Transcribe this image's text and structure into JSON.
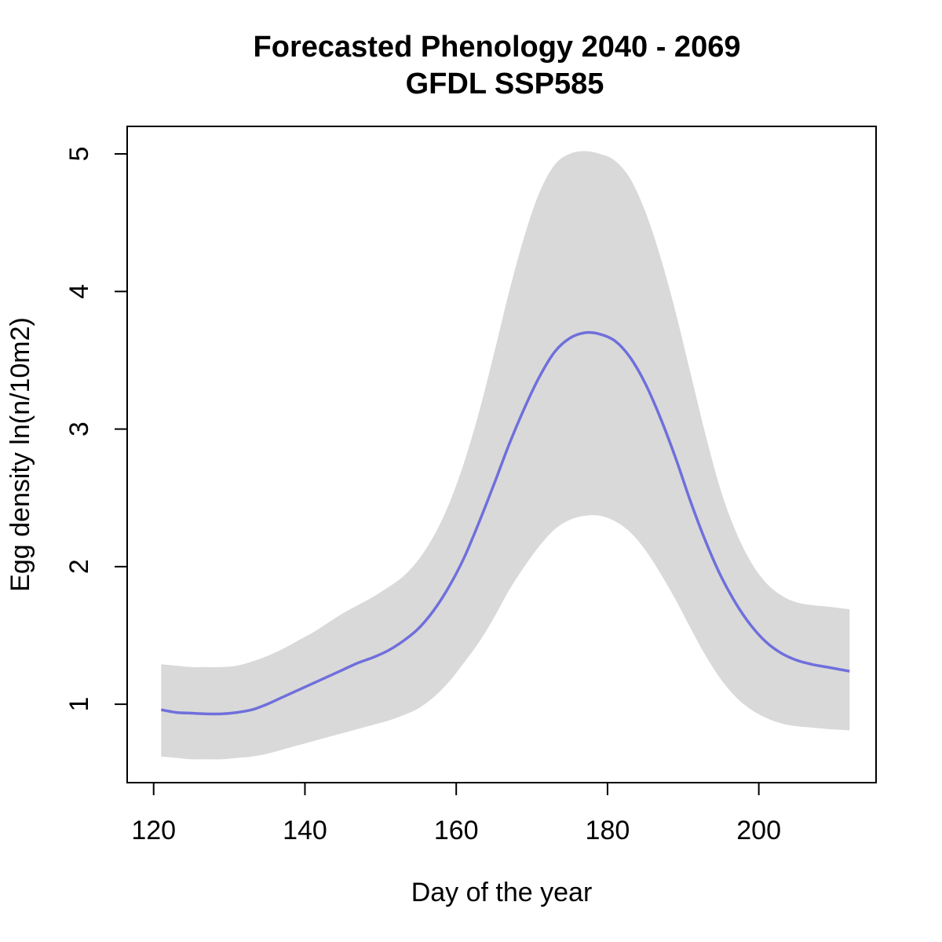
{
  "chart_data": {
    "type": "line",
    "title": "Forecasted Phenology 2040 - 2069",
    "subtitle": "GFDL SSP585",
    "xlabel": "Day of the year",
    "ylabel": "Egg density ln(n/10m2)",
    "xlim": [
      116.5,
      215.5
    ],
    "ylim": [
      0.43,
      5.2
    ],
    "x_ticks": [
      120,
      140,
      160,
      180,
      200
    ],
    "x_tick_labels": [
      "120",
      "140",
      "160",
      "180",
      "200"
    ],
    "y_ticks": [
      1,
      2,
      3,
      4,
      5
    ],
    "y_tick_labels": [
      "1",
      "2",
      "3",
      "4",
      "5"
    ],
    "grid": false,
    "colors": {
      "line": "#6f6fdc",
      "band": "#d9d9d9",
      "axis": "#000000"
    },
    "series": [
      {
        "name": "mean",
        "x": [
          121,
          123,
          125,
          127,
          129,
          131,
          133,
          135,
          137,
          139,
          141,
          143,
          145,
          147,
          149,
          151,
          153,
          155,
          157,
          159,
          161,
          163,
          165,
          167,
          169,
          171,
          173,
          175,
          177,
          179,
          181,
          183,
          185,
          187,
          189,
          191,
          193,
          195,
          197,
          199,
          201,
          203,
          205,
          207,
          209,
          212
        ],
        "y": [
          0.96,
          0.94,
          0.935,
          0.93,
          0.93,
          0.94,
          0.96,
          1.0,
          1.05,
          1.1,
          1.15,
          1.2,
          1.25,
          1.3,
          1.34,
          1.39,
          1.46,
          1.55,
          1.68,
          1.85,
          2.06,
          2.32,
          2.6,
          2.89,
          3.15,
          3.38,
          3.56,
          3.66,
          3.7,
          3.69,
          3.64,
          3.52,
          3.33,
          3.08,
          2.79,
          2.47,
          2.18,
          1.93,
          1.73,
          1.57,
          1.45,
          1.37,
          1.32,
          1.29,
          1.27,
          1.24
        ]
      },
      {
        "name": "upper",
        "x": [
          121,
          123,
          125,
          127,
          129,
          131,
          133,
          135,
          137,
          139,
          141,
          143,
          145,
          147,
          149,
          151,
          153,
          155,
          157,
          159,
          161,
          163,
          165,
          167,
          169,
          171,
          173,
          175,
          177,
          179,
          181,
          183,
          185,
          187,
          189,
          191,
          193,
          195,
          197,
          199,
          201,
          203,
          205,
          207,
          209,
          212
        ],
        "y": [
          1.29,
          1.28,
          1.27,
          1.27,
          1.27,
          1.28,
          1.31,
          1.35,
          1.4,
          1.46,
          1.52,
          1.59,
          1.66,
          1.72,
          1.78,
          1.85,
          1.93,
          2.05,
          2.22,
          2.45,
          2.75,
          3.12,
          3.55,
          4.0,
          4.4,
          4.72,
          4.92,
          5.0,
          5.02,
          5.0,
          4.95,
          4.82,
          4.58,
          4.25,
          3.85,
          3.4,
          2.95,
          2.55,
          2.25,
          2.03,
          1.88,
          1.79,
          1.74,
          1.72,
          1.71,
          1.69
        ]
      },
      {
        "name": "lower",
        "x": [
          121,
          123,
          125,
          127,
          129,
          131,
          133,
          135,
          137,
          139,
          141,
          143,
          145,
          147,
          149,
          151,
          153,
          155,
          157,
          159,
          161,
          163,
          165,
          167,
          169,
          171,
          173,
          175,
          177,
          179,
          181,
          183,
          185,
          187,
          189,
          191,
          193,
          195,
          197,
          199,
          201,
          203,
          205,
          207,
          209,
          212
        ],
        "y": [
          0.62,
          0.61,
          0.6,
          0.6,
          0.6,
          0.61,
          0.62,
          0.64,
          0.67,
          0.7,
          0.73,
          0.76,
          0.79,
          0.82,
          0.85,
          0.88,
          0.92,
          0.97,
          1.05,
          1.16,
          1.3,
          1.45,
          1.63,
          1.83,
          2.0,
          2.15,
          2.27,
          2.34,
          2.37,
          2.37,
          2.33,
          2.25,
          2.12,
          1.95,
          1.76,
          1.55,
          1.35,
          1.18,
          1.05,
          0.96,
          0.9,
          0.86,
          0.84,
          0.83,
          0.82,
          0.81
        ]
      }
    ]
  }
}
